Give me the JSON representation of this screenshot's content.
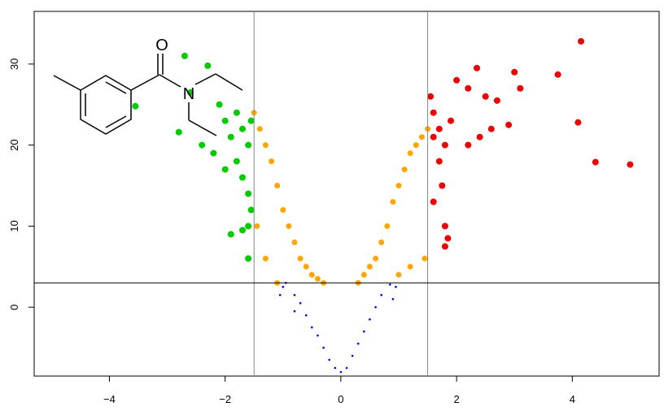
{
  "chart_data": {
    "type": "scatter",
    "title": "",
    "xlabel": "",
    "ylabel": "",
    "xlim": [
      -5.3,
      5.5
    ],
    "ylim": [
      -8.5,
      36.5
    ],
    "x_ticks": [
      -4,
      -2,
      0,
      2,
      4
    ],
    "y_ticks": [
      0,
      10,
      20,
      30
    ],
    "x_tick_labels": [
      "−4",
      "−2",
      "0",
      "2",
      "4"
    ],
    "y_tick_labels": [
      "0",
      "10",
      "20",
      "30"
    ],
    "threshold_lines": {
      "x": [
        -1.5,
        1.5
      ],
      "y": [
        3
      ]
    },
    "grid": false,
    "legend": "none",
    "series": [
      {
        "color": "#0000ee",
        "marker": "small",
        "points": [
          [
            -0.95,
            3
          ],
          [
            -0.8,
            1.5
          ],
          [
            -0.7,
            0.5
          ],
          [
            -0.6,
            -1
          ],
          [
            -0.5,
            -2.5
          ],
          [
            -0.4,
            -3.5
          ],
          [
            -0.3,
            -5
          ],
          [
            -0.2,
            -6.5
          ],
          [
            -0.1,
            -7.5
          ],
          [
            0,
            -8
          ],
          [
            0.1,
            -7.5
          ],
          [
            0.2,
            -6
          ],
          [
            0.3,
            -4.5
          ],
          [
            0.4,
            -3
          ],
          [
            0.5,
            -1.5
          ],
          [
            0.6,
            0
          ],
          [
            0.7,
            1.5
          ],
          [
            0.85,
            2.8
          ],
          [
            -1,
            2.5
          ],
          [
            -1.05,
            1.5
          ],
          [
            -0.8,
            -0.5
          ],
          [
            0.9,
            1
          ],
          [
            0.95,
            2.5
          ]
        ]
      },
      {
        "color": "#ffa500",
        "marker": "medium",
        "points": [
          [
            -1.5,
            24
          ],
          [
            -1.4,
            22
          ],
          [
            -1.3,
            20
          ],
          [
            -1.2,
            18
          ],
          [
            -1.1,
            15
          ],
          [
            -1.0,
            12
          ],
          [
            -0.9,
            10
          ],
          [
            -0.8,
            8
          ],
          [
            -0.7,
            6
          ],
          [
            -0.6,
            5
          ],
          [
            -0.5,
            4
          ],
          [
            -0.4,
            3.5
          ],
          [
            -0.3,
            3
          ],
          [
            -1.45,
            10
          ],
          [
            -1.3,
            6
          ],
          [
            -1.1,
            3
          ],
          [
            0.3,
            3
          ],
          [
            0.4,
            4
          ],
          [
            0.5,
            5
          ],
          [
            0.6,
            6
          ],
          [
            0.7,
            8
          ],
          [
            0.8,
            10
          ],
          [
            0.9,
            13
          ],
          [
            1.0,
            15
          ],
          [
            1.1,
            17
          ],
          [
            1.2,
            19
          ],
          [
            1.3,
            20
          ],
          [
            1.4,
            21
          ],
          [
            1.5,
            22
          ],
          [
            1.45,
            6
          ],
          [
            1.2,
            5
          ],
          [
            1.0,
            4
          ]
        ]
      },
      {
        "color": "#00cc00",
        "marker": "large",
        "points": [
          [
            -3.55,
            24.8
          ],
          [
            -2.7,
            31
          ],
          [
            -2.6,
            26.5
          ],
          [
            -2.3,
            29.8
          ],
          [
            -2.1,
            25
          ],
          [
            -2.0,
            23
          ],
          [
            -1.9,
            21
          ],
          [
            -1.8,
            18
          ],
          [
            -1.7,
            16
          ],
          [
            -1.6,
            14
          ],
          [
            -1.55,
            12
          ],
          [
            -1.6,
            10
          ],
          [
            -1.7,
            9.5
          ],
          [
            -1.9,
            9
          ],
          [
            -1.6,
            6
          ],
          [
            -2.8,
            21.6
          ],
          [
            -2.4,
            20
          ],
          [
            -2.2,
            19
          ],
          [
            -2.0,
            17
          ],
          [
            -1.8,
            24
          ],
          [
            -1.7,
            22
          ],
          [
            -1.6,
            20
          ],
          [
            -1.55,
            23
          ]
        ]
      },
      {
        "color": "#ee0000",
        "marker": "large",
        "points": [
          [
            1.55,
            26
          ],
          [
            1.6,
            24
          ],
          [
            1.7,
            22
          ],
          [
            1.8,
            20
          ],
          [
            1.9,
            23
          ],
          [
            2.0,
            28
          ],
          [
            2.2,
            27
          ],
          [
            2.35,
            29.5
          ],
          [
            2.5,
            26
          ],
          [
            2.7,
            25.5
          ],
          [
            3.0,
            29
          ],
          [
            3.1,
            27
          ],
          [
            2.9,
            22.5
          ],
          [
            2.6,
            22
          ],
          [
            2.4,
            21
          ],
          [
            2.2,
            20
          ],
          [
            1.6,
            21
          ],
          [
            1.7,
            18
          ],
          [
            1.75,
            15
          ],
          [
            1.6,
            13
          ],
          [
            1.8,
            10
          ],
          [
            1.85,
            8.5
          ],
          [
            1.8,
            7.5
          ],
          [
            3.75,
            28.7
          ],
          [
            4.15,
            32.8
          ],
          [
            4.1,
            22.8
          ],
          [
            4.4,
            17.9
          ],
          [
            5.0,
            17.6
          ]
        ]
      }
    ]
  },
  "molecule": {
    "atom_labels": [
      "O",
      "N"
    ]
  }
}
